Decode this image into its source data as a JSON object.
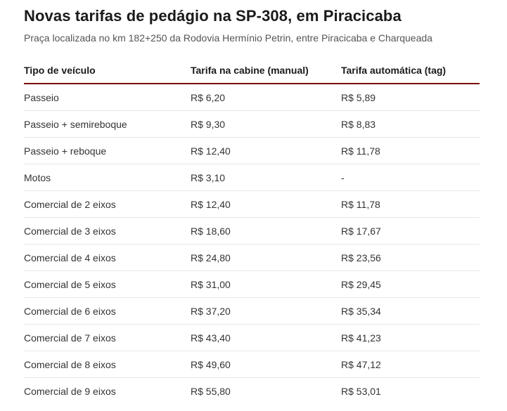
{
  "title": "Novas tarifas de pedágio na SP-308, em Piracicaba",
  "subtitle": "Praça localizada no km 182+250 da Rodovia Hermínio Petrin, entre Piracicaba e Charqueada",
  "colors": {
    "header_rule": "#7a0a0a",
    "row_divider": "#e6e6e6"
  },
  "table": {
    "headers": [
      "Tipo de veículo",
      "Tarifa na cabine (manual)",
      "Tarifa automática (tag)"
    ],
    "rows": [
      [
        "Passeio",
        "R$ 6,20",
        "R$ 5,89"
      ],
      [
        "Passeio + semireboque",
        "R$ 9,30",
        "R$ 8,83"
      ],
      [
        "Passeio + reboque",
        "R$ 12,40",
        "R$ 11,78"
      ],
      [
        "Motos",
        "R$ 3,10",
        "-"
      ],
      [
        "Comercial de 2 eixos",
        "R$ 12,40",
        "R$ 11,78"
      ],
      [
        "Comercial de 3 eixos",
        "R$ 18,60",
        "R$ 17,67"
      ],
      [
        "Comercial de 4 eixos",
        "R$ 24,80",
        "R$ 23,56"
      ],
      [
        "Comercial de 5 eixos",
        "R$ 31,00",
        "R$ 29,45"
      ],
      [
        "Comercial de 6 eixos",
        "R$ 37,20",
        "R$ 35,34"
      ],
      [
        "Comercial de 7 eixos",
        "R$ 43,40",
        "R$ 41,23"
      ],
      [
        "Comercial de 8 eixos",
        "R$ 49,60",
        "R$ 47,12"
      ],
      [
        "Comercial de 9 eixos",
        "R$ 55,80",
        "R$ 53,01"
      ]
    ]
  }
}
